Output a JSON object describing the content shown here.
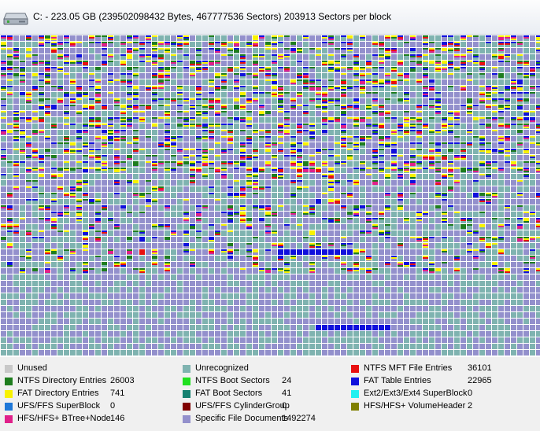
{
  "header": {
    "title": "C: - 223.05 GB (239502098432 Bytes, 467777536 Sectors) 203913 Sectors per block",
    "icon": "hard-drive-icon"
  },
  "map": {
    "block_colors": {
      "unrecognized": "#7fb3b0",
      "specific": "#9390cc",
      "ntfs_dir": "#1e7d1e",
      "fat_table": "#1010dc",
      "fat_dir": "#f8f200",
      "hfs_btree": "#e0208a",
      "ntfs_mft": "#e81010",
      "unused": "#c8c8c8"
    }
  },
  "legend": [
    {
      "label": "Unused",
      "count": "",
      "color": "#c8c8c8"
    },
    {
      "label": "Unrecognized",
      "count": "",
      "color": "#7fb3b0"
    },
    {
      "label": "NTFS MFT File Entries",
      "count": "36101",
      "color": "#e81010"
    },
    {
      "label": "NTFS Directory Entries",
      "count": "26003",
      "color": "#1e7d1e"
    },
    {
      "label": "NTFS Boot Sectors",
      "count": "24",
      "color": "#20e020"
    },
    {
      "label": "FAT Table Entries",
      "count": "22965",
      "color": "#1010dc"
    },
    {
      "label": "FAT Directory Entries",
      "count": "741",
      "color": "#f8f200"
    },
    {
      "label": "FAT Boot Sectors",
      "count": "41",
      "color": "#158070"
    },
    {
      "label": "Ext2/Ext3/Ext4 SuperBlock",
      "count": "0",
      "color": "#20f0f0"
    },
    {
      "label": "UFS/FFS SuperBlock",
      "count": "0",
      "color": "#1f78d8"
    },
    {
      "label": "UFS/FFS CylinderGroup",
      "count": "0",
      "color": "#800000"
    },
    {
      "label": "HFS/HFS+ VolumeHeader",
      "count": "2",
      "color": "#808000"
    },
    {
      "label": "HFS/HFS+ BTree+Node",
      "count": "146",
      "color": "#e0208a"
    },
    {
      "label": "Specific File Documents",
      "count": "1492274",
      "color": "#9390cc"
    }
  ]
}
